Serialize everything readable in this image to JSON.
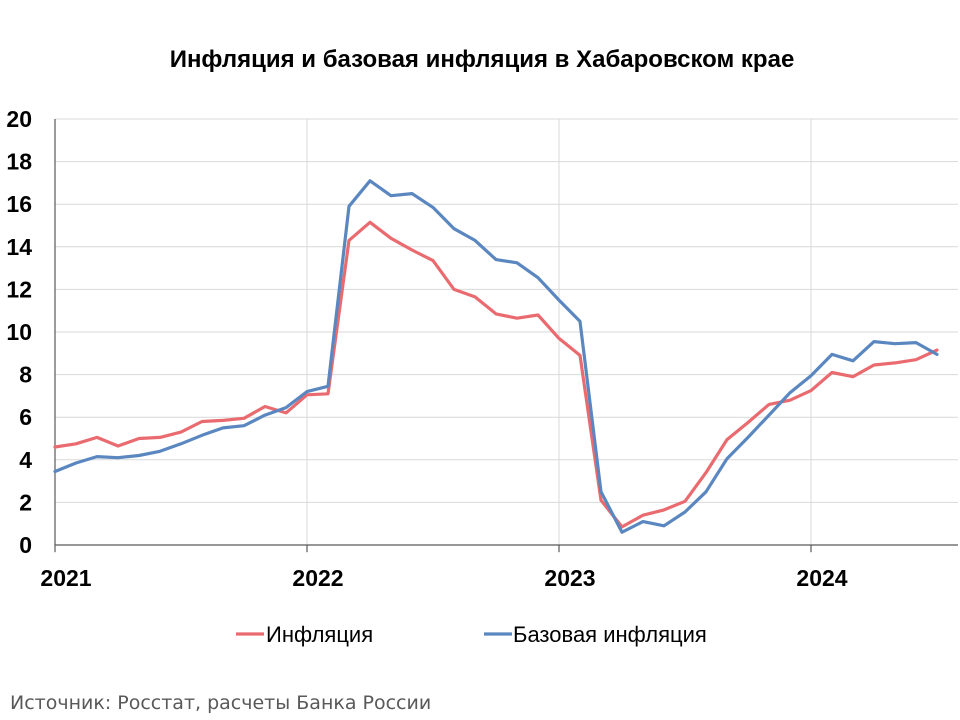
{
  "chart_data": {
    "type": "line",
    "title": "Инфляция и базовая инфляция в Хабаровском крае",
    "xlabel": "",
    "ylabel": "",
    "ylim": [
      0,
      20
    ],
    "yticks": [
      "0",
      "2",
      "4",
      "6",
      "8",
      "10",
      "12",
      "14",
      "16",
      "18",
      "20"
    ],
    "xticks": [
      "2021",
      "2022",
      "2023",
      "2024"
    ],
    "grid": "horizontal",
    "legend": "bottom",
    "x": [
      "2021-01",
      "2021-02",
      "2021-03",
      "2021-04",
      "2021-05",
      "2021-06",
      "2021-07",
      "2021-08",
      "2021-09",
      "2021-10",
      "2021-11",
      "2021-12",
      "2022-01",
      "2022-02",
      "2022-03",
      "2022-04",
      "2022-05",
      "2022-06",
      "2022-07",
      "2022-08",
      "2022-09",
      "2022-10",
      "2022-11",
      "2022-12",
      "2023-01",
      "2023-02",
      "2023-03",
      "2023-04",
      "2023-05",
      "2023-06",
      "2023-07",
      "2023-08",
      "2023-09",
      "2023-10",
      "2023-11",
      "2023-12",
      "2024-01",
      "2024-02",
      "2024-03",
      "2024-04",
      "2024-05",
      "2024-06",
      "2024-07"
    ],
    "series": [
      {
        "name": "Инфляция",
        "color": "#ea6b6f",
        "values": [
          4.6,
          4.75,
          5.05,
          4.65,
          5.0,
          5.05,
          5.3,
          5.8,
          5.85,
          5.95,
          6.5,
          6.2,
          7.05,
          7.1,
          14.3,
          15.15,
          14.4,
          13.85,
          13.35,
          12.0,
          11.65,
          10.85,
          10.65,
          10.8,
          9.7,
          8.9,
          2.1,
          0.85,
          1.4,
          1.65,
          2.05,
          3.4,
          4.95,
          5.75,
          6.6,
          6.8,
          7.25,
          8.1,
          7.9,
          8.45,
          8.55,
          8.7,
          9.15
        ]
      },
      {
        "name": "Базовая инфляция",
        "color": "#5b87c0",
        "values": [
          3.45,
          3.85,
          4.15,
          4.1,
          4.2,
          4.4,
          4.75,
          5.15,
          5.5,
          5.6,
          6.1,
          6.45,
          7.2,
          7.45,
          15.9,
          17.1,
          16.4,
          16.5,
          15.85,
          14.85,
          14.3,
          13.4,
          13.25,
          12.55,
          11.5,
          10.5,
          2.5,
          0.6,
          1.1,
          0.9,
          1.55,
          2.5,
          4.05,
          5.05,
          6.1,
          7.15,
          7.95,
          8.95,
          8.65,
          9.55,
          9.45,
          9.5,
          8.95
        ]
      }
    ]
  },
  "source": "Источник: Росстат, расчеты Банка России"
}
